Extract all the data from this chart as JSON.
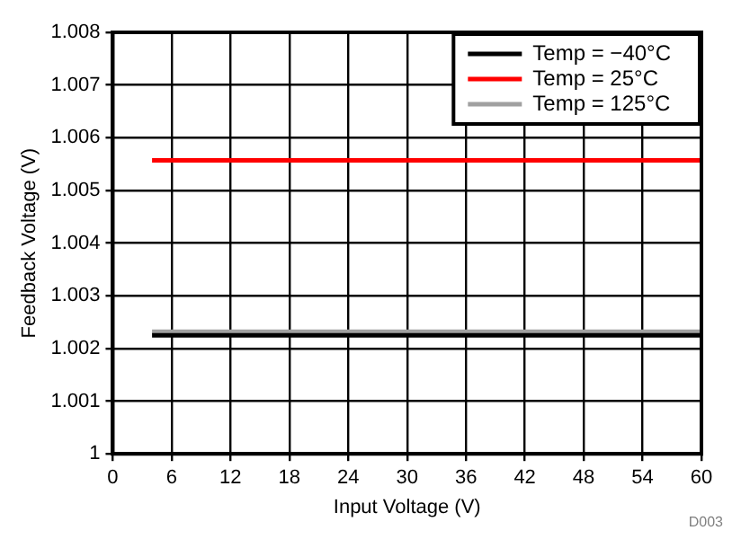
{
  "chart_data": {
    "type": "line",
    "xlabel": "Input Voltage (V)",
    "ylabel": "Feedback Voltage (V)",
    "x": [
      4,
      60
    ],
    "series": [
      {
        "name": "Temp = −40°C",
        "color": "#000000",
        "values": [
          1.00225,
          1.00225
        ]
      },
      {
        "name": "Temp = 25°C",
        "color": "#ff0000",
        "values": [
          1.00557,
          1.00557
        ]
      },
      {
        "name": "Temp = 125°C",
        "color": "#a0a0a0",
        "values": [
          1.00232,
          1.00232
        ]
      }
    ],
    "xlim": [
      0,
      60
    ],
    "xticks": [
      0,
      6,
      12,
      18,
      24,
      30,
      36,
      42,
      48,
      54,
      60
    ],
    "ylim": [
      1,
      1.008
    ],
    "yticks": [
      1,
      1.001,
      1.002,
      1.003,
      1.004,
      1.005,
      1.006,
      1.007,
      1.008
    ],
    "grid": true,
    "legend": "top right",
    "marker": "none",
    "line_style": "solid",
    "annotations": [
      "D003"
    ]
  }
}
